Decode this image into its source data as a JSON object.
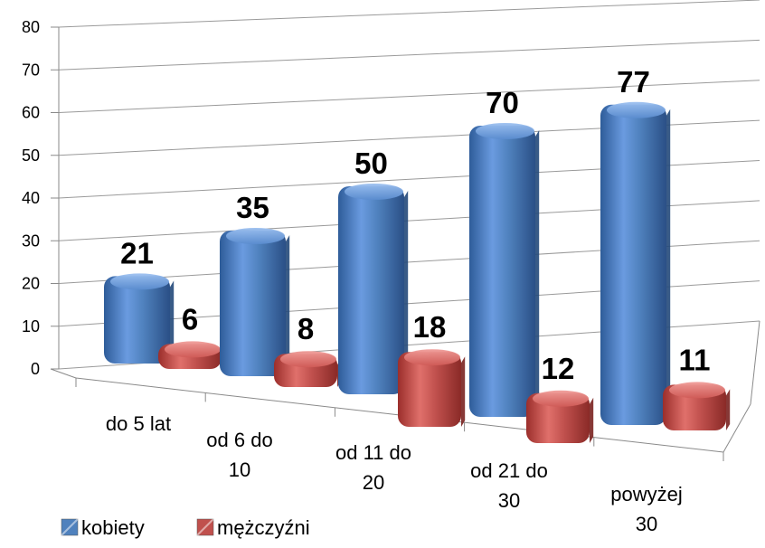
{
  "chart_data": {
    "type": "bar",
    "style": "3d-clustered",
    "categories": [
      [
        "do 5 lat"
      ],
      [
        "od 6 do",
        "10"
      ],
      [
        "od 11 do",
        "20"
      ],
      [
        "od 21 do",
        "30"
      ],
      [
        "powyżej",
        "30"
      ]
    ],
    "series": [
      {
        "name": "kobiety",
        "color": "#4F81BD",
        "values": [
          21,
          35,
          50,
          70,
          77
        ]
      },
      {
        "name": "mężczyźni",
        "color": "#C0504D",
        "values": [
          6,
          8,
          18,
          12,
          11
        ]
      }
    ],
    "y_ticks": [
      "0",
      "10",
      "20",
      "30",
      "40",
      "50",
      "60",
      "70",
      "80"
    ],
    "ylim": [
      0,
      80
    ],
    "title": "",
    "xlabel": "",
    "ylabel": "",
    "grid": true,
    "legend_position": "bottom-left",
    "data_labels": true
  }
}
